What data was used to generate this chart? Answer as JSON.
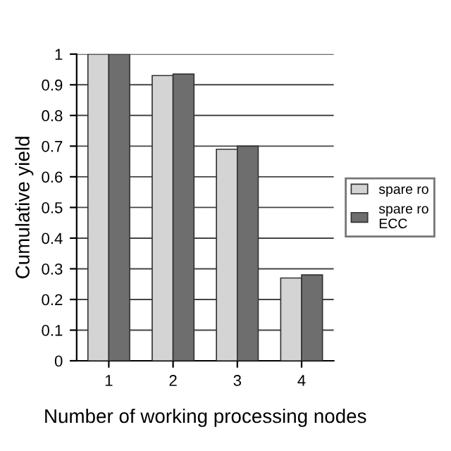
{
  "chart_data": {
    "type": "bar",
    "xlabel": "Number of working processing nodes",
    "ylabel": "Cumulative yield",
    "categories": [
      "1",
      "2",
      "3",
      "4"
    ],
    "series": [
      {
        "name": "spare ro",
        "color": "#d4d4d4",
        "values": [
          1.0,
          0.93,
          0.69,
          0.27
        ]
      },
      {
        "name": "spare ro\nECC",
        "color": "#6e6e6e",
        "values": [
          1.0,
          0.935,
          0.7,
          0.28
        ]
      }
    ],
    "ylim": [
      0,
      1
    ],
    "yticks": [
      0,
      0.1,
      0.2,
      0.3,
      0.4,
      0.5,
      0.6,
      0.7,
      0.8,
      0.9,
      1
    ],
    "grid": "y",
    "legend": "right"
  }
}
